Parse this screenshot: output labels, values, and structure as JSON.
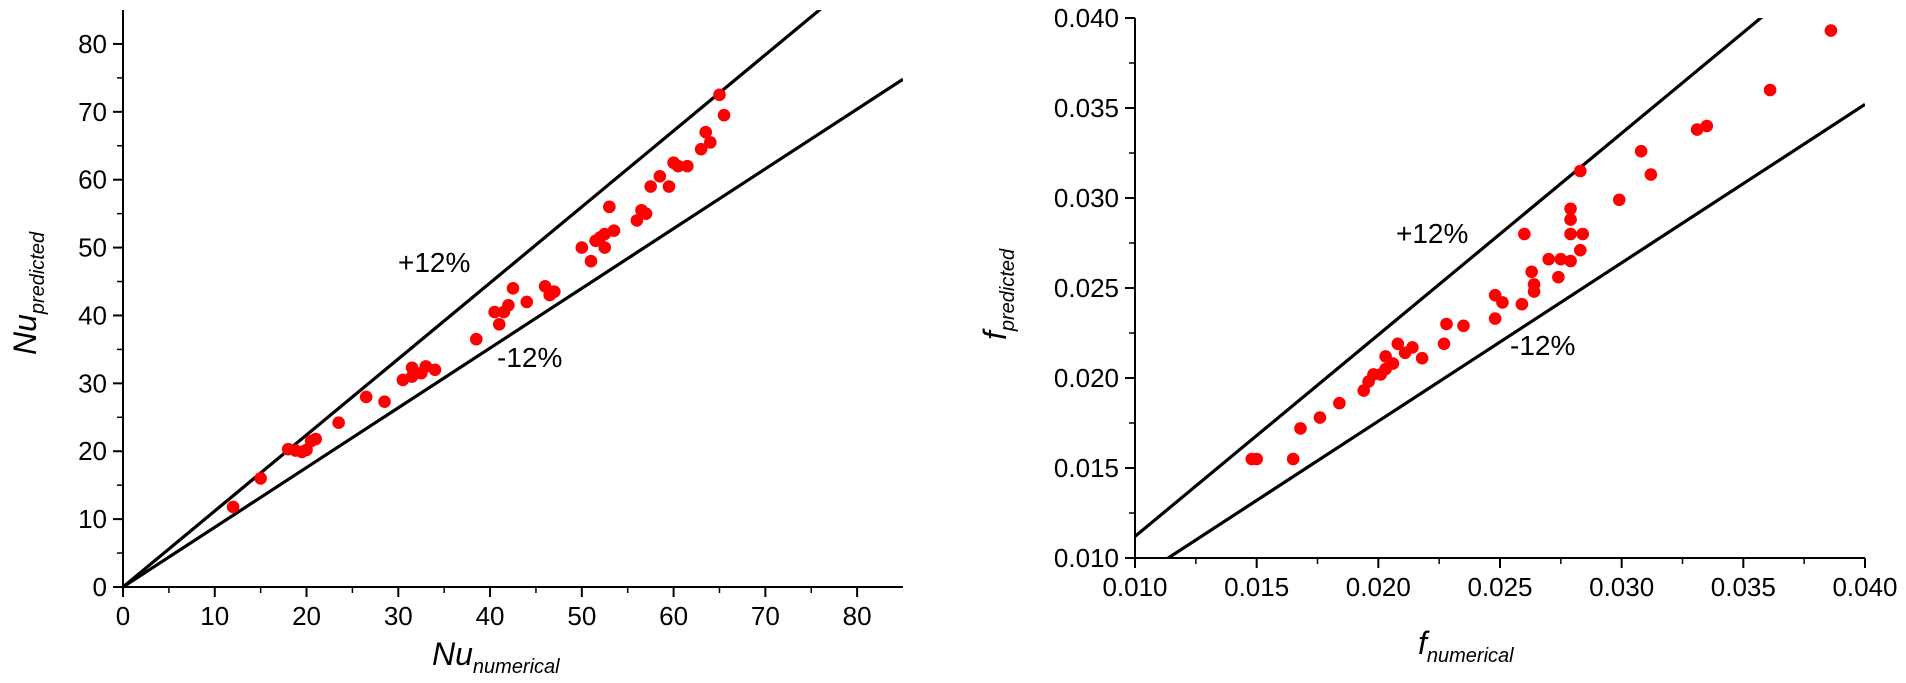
{
  "chart_data": [
    {
      "type": "scatter",
      "xlim": [
        0,
        85
      ],
      "ylim": [
        0,
        85
      ],
      "x_ticks": [
        "0",
        "10",
        "20",
        "30",
        "40",
        "50",
        "60",
        "70",
        "80"
      ],
      "y_ticks": [
        "0",
        "10",
        "20",
        "30",
        "40",
        "50",
        "60",
        "70",
        "80"
      ],
      "xlabel": "Nu",
      "xlabel_sub": "numerical",
      "ylabel": "Nu",
      "ylabel_sub": "predicted",
      "grid": false,
      "marker_color": "#ff0000",
      "reference_lines": [
        {
          "label": "+12%",
          "slope": 1.12
        },
        {
          "label": "-12%",
          "slope": 0.88
        }
      ],
      "points": [
        [
          12.0,
          11.8
        ],
        [
          15.0,
          16.0
        ],
        [
          18.0,
          20.3
        ],
        [
          18.8,
          20.1
        ],
        [
          19.5,
          19.9
        ],
        [
          20.0,
          20.2
        ],
        [
          20.5,
          21.5
        ],
        [
          21.0,
          21.8
        ],
        [
          23.5,
          24.2
        ],
        [
          26.5,
          28.0
        ],
        [
          28.5,
          27.3
        ],
        [
          30.5,
          30.5
        ],
        [
          31.5,
          31.0
        ],
        [
          31.5,
          32.3
        ],
        [
          32.5,
          31.5
        ],
        [
          33.0,
          32.5
        ],
        [
          34.0,
          32.0
        ],
        [
          38.5,
          36.5
        ],
        [
          40.5,
          40.5
        ],
        [
          41.0,
          38.7
        ],
        [
          41.5,
          40.5
        ],
        [
          42.0,
          41.5
        ],
        [
          42.5,
          44.0
        ],
        [
          44.0,
          42.0
        ],
        [
          46.0,
          44.3
        ],
        [
          46.5,
          43.0
        ],
        [
          47.0,
          43.5
        ],
        [
          50.0,
          50.0
        ],
        [
          51.0,
          48.0
        ],
        [
          51.5,
          51.0
        ],
        [
          52.0,
          51.5
        ],
        [
          52.5,
          50.0
        ],
        [
          52.5,
          52.0
        ],
        [
          53.0,
          56.0
        ],
        [
          53.5,
          52.5
        ],
        [
          56.0,
          54.0
        ],
        [
          56.5,
          55.5
        ],
        [
          57.0,
          55.0
        ],
        [
          57.5,
          59.0
        ],
        [
          58.5,
          60.5
        ],
        [
          59.5,
          59.0
        ],
        [
          60.0,
          62.5
        ],
        [
          60.5,
          62.0
        ],
        [
          61.5,
          62.0
        ],
        [
          63.0,
          64.5
        ],
        [
          63.5,
          67.0
        ],
        [
          64.0,
          65.5
        ],
        [
          65.0,
          72.5
        ],
        [
          65.5,
          69.5
        ]
      ],
      "annotations": [
        "+12%",
        "-12%"
      ]
    },
    {
      "type": "scatter",
      "xlim": [
        0.01,
        0.04
      ],
      "ylim": [
        0.01,
        0.04
      ],
      "x_ticks": [
        "0.010",
        "0.015",
        "0.020",
        "0.025",
        "0.030",
        "0.035",
        "0.040"
      ],
      "y_ticks": [
        "0.010",
        "0.015",
        "0.020",
        "0.025",
        "0.030",
        "0.035",
        "0.040"
      ],
      "xlabel": "f",
      "xlabel_sub": "numerical",
      "ylabel": "f",
      "ylabel_sub": "predicted",
      "grid": false,
      "marker_color": "#ff0000",
      "reference_lines": [
        {
          "label": "+12%",
          "slope": 1.12
        },
        {
          "label": "-12%",
          "slope": 0.88
        }
      ],
      "points": [
        [
          0.0148,
          0.0155
        ],
        [
          0.015,
          0.0155
        ],
        [
          0.0165,
          0.0155
        ],
        [
          0.0168,
          0.0172
        ],
        [
          0.0176,
          0.0178
        ],
        [
          0.0184,
          0.0186
        ],
        [
          0.0194,
          0.0193
        ],
        [
          0.0196,
          0.0198
        ],
        [
          0.0198,
          0.0202
        ],
        [
          0.0201,
          0.0202
        ],
        [
          0.0203,
          0.0205
        ],
        [
          0.0203,
          0.0212
        ],
        [
          0.0206,
          0.0208
        ],
        [
          0.0208,
          0.0219
        ],
        [
          0.0211,
          0.0214
        ],
        [
          0.0214,
          0.0217
        ],
        [
          0.0218,
          0.0211
        ],
        [
          0.0227,
          0.0219
        ],
        [
          0.0228,
          0.023
        ],
        [
          0.0235,
          0.0229
        ],
        [
          0.0248,
          0.0233
        ],
        [
          0.0248,
          0.0246
        ],
        [
          0.0251,
          0.0242
        ],
        [
          0.0259,
          0.0241
        ],
        [
          0.026,
          0.028
        ],
        [
          0.0263,
          0.0259
        ],
        [
          0.0264,
          0.0252
        ],
        [
          0.0264,
          0.0248
        ],
        [
          0.027,
          0.0266
        ],
        [
          0.0274,
          0.0256
        ],
        [
          0.0275,
          0.0266
        ],
        [
          0.0279,
          0.0265
        ],
        [
          0.0279,
          0.028
        ],
        [
          0.0279,
          0.0288
        ],
        [
          0.0279,
          0.0294
        ],
        [
          0.0283,
          0.0271
        ],
        [
          0.0284,
          0.028
        ],
        [
          0.0283,
          0.0315
        ],
        [
          0.0299,
          0.0299
        ],
        [
          0.0308,
          0.0326
        ],
        [
          0.0312,
          0.0313
        ],
        [
          0.0331,
          0.0338
        ],
        [
          0.0335,
          0.034
        ],
        [
          0.0361,
          0.036
        ],
        [
          0.0386,
          0.0393
        ]
      ],
      "annotations": [
        "+12%",
        "-12%"
      ]
    }
  ]
}
